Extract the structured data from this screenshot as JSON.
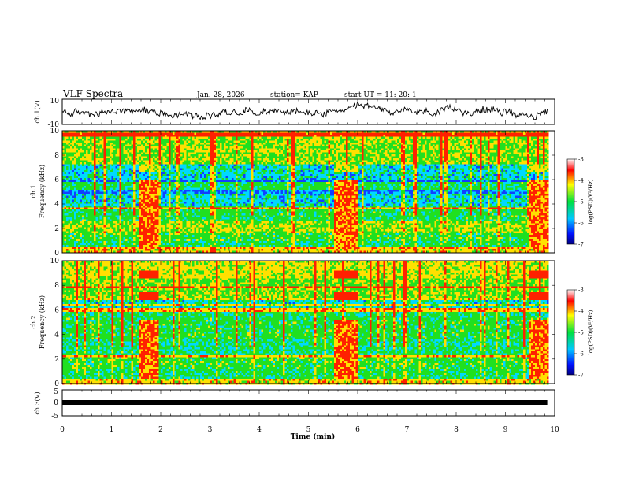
{
  "header": {
    "title": "VLF Spectra",
    "date": "Jan. 28, 2026",
    "station": "station= KAP",
    "start": "start  UT  =   11: 20: 1"
  },
  "chart_data": [
    {
      "panel": "ch1-waveform",
      "type": "line",
      "ylabel": "ch.1(V)",
      "ylim": [
        -10,
        10
      ],
      "ytick_labels": [
        "10",
        "-10"
      ],
      "xlim": [
        0,
        10
      ],
      "data_extent_min": 9.85
    },
    {
      "panel": "ch1-spectrogram",
      "type": "heatmap",
      "ylabel": "ch.1\nFrequency  (kHz)",
      "ylim": [
        0,
        10
      ],
      "ytick_labels": [
        "0",
        "2",
        "4",
        "6",
        "8",
        "10"
      ],
      "xlim": [
        0,
        10
      ],
      "colorbar": {
        "label": "log(PSD)(V²/Hz)",
        "range": [
          -7,
          -3
        ],
        "tick_labels": [
          "-3",
          "-4",
          "-5",
          "-6",
          "-7"
        ]
      },
      "bursts_min": [
        [
          1.55,
          1.95
        ],
        [
          5.5,
          6.0
        ],
        [
          9.45,
          9.85
        ]
      ]
    },
    {
      "panel": "ch2-spectrogram",
      "type": "heatmap",
      "ylabel": "ch.2\nFrequency  (kHz)",
      "ylim": [
        0,
        10
      ],
      "ytick_labels": [
        "0",
        "2",
        "4",
        "6",
        "8",
        "10"
      ],
      "xlim": [
        0,
        10
      ],
      "colorbar": {
        "label": "log(PSD)(V²/Hz)",
        "range": [
          -7,
          -3
        ],
        "tick_labels": [
          "-3",
          "-4",
          "-5",
          "-6",
          "-7"
        ]
      },
      "bursts_min": [
        [
          1.55,
          1.95
        ],
        [
          5.5,
          6.0
        ],
        [
          9.45,
          9.85
        ]
      ]
    },
    {
      "panel": "ch3-waveform",
      "type": "line",
      "ylabel": "ch.3(V)",
      "ylim": [
        -5,
        5
      ],
      "ytick_labels": [
        "5",
        "0",
        "-5"
      ],
      "xlim": [
        0,
        10
      ],
      "data_extent_min": 9.85
    }
  ],
  "xaxis": {
    "label": "Time  (min)",
    "tick_labels": [
      "0",
      "1",
      "2",
      "3",
      "4",
      "5",
      "6",
      "7",
      "8",
      "9",
      "10"
    ]
  },
  "colors": {
    "red": "#ff2000",
    "yellow": "#ffe000",
    "green": "#20e020",
    "cyan": "#00d8ff",
    "blue": "#1040ff"
  }
}
